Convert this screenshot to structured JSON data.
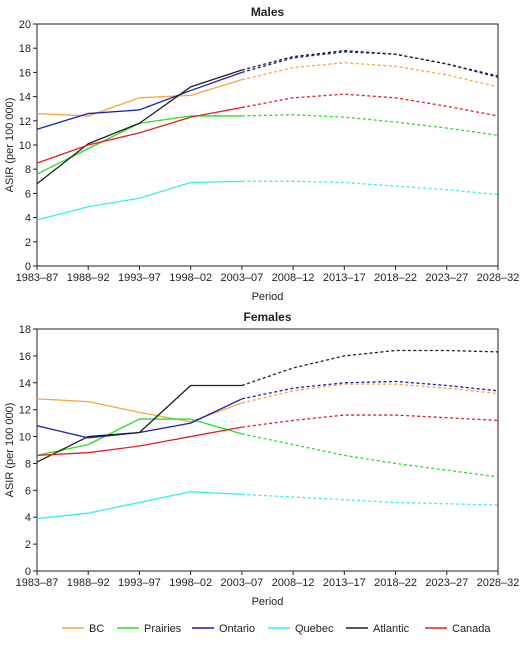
{
  "chart_data": [
    {
      "type": "line",
      "title": "Males",
      "xlabel": "Period",
      "ylabel": "ASIR (per 100 000)",
      "ylim": [
        0,
        20
      ],
      "yticks": [
        0,
        2,
        4,
        6,
        8,
        10,
        12,
        14,
        16,
        18,
        20
      ],
      "grid": false,
      "categories": [
        "1983–87",
        "1988–92",
        "1993–97",
        "1998–02",
        "2003–07",
        "2008–12",
        "2013–17",
        "2018–22",
        "2023–27",
        "2028–32"
      ],
      "observed_through": "2003–07",
      "series": [
        {
          "name": "BC",
          "color": "#f7a541",
          "values": [
            12.6,
            12.4,
            13.9,
            14.1,
            15.4,
            16.4,
            16.8,
            16.5,
            15.8,
            14.8
          ]
        },
        {
          "name": "Prairies",
          "color": "#29e029",
          "values": [
            7.6,
            9.7,
            11.8,
            12.4,
            12.4,
            12.5,
            12.3,
            11.9,
            11.4,
            10.8
          ]
        },
        {
          "name": "Ontario",
          "color": "#1d1db7",
          "values": [
            11.3,
            12.6,
            12.9,
            14.5,
            16.0,
            17.2,
            17.7,
            17.5,
            16.7,
            15.7
          ]
        },
        {
          "name": "Quebec",
          "color": "#3ceeee",
          "values": [
            3.8,
            4.9,
            5.6,
            6.9,
            7.0,
            7.0,
            6.9,
            6.6,
            6.3,
            5.9
          ]
        },
        {
          "name": "Atlantic",
          "color": "#231f20",
          "values": [
            6.8,
            10.1,
            11.8,
            14.8,
            16.2,
            17.3,
            17.8,
            17.5,
            16.7,
            15.6
          ]
        },
        {
          "name": "Canada",
          "color": "#e02228",
          "values": [
            8.5,
            10.0,
            11.0,
            12.3,
            13.1,
            13.9,
            14.2,
            13.9,
            13.2,
            12.4
          ]
        }
      ]
    },
    {
      "type": "line",
      "title": "Females",
      "xlabel": "Period",
      "ylabel": "ASIR (per 100 000)",
      "ylim": [
        0,
        18
      ],
      "yticks": [
        0,
        2,
        4,
        6,
        8,
        10,
        12,
        14,
        16,
        18
      ],
      "grid": false,
      "categories": [
        "1983–87",
        "1988–92",
        "1993–97",
        "1998–02",
        "2003–07",
        "2008–12",
        "2013–17",
        "2018–22",
        "2023–27",
        "2028–32"
      ],
      "observed_through": "2003–07",
      "series": [
        {
          "name": "BC",
          "color": "#f7a541",
          "values": [
            12.8,
            12.6,
            11.8,
            11.1,
            12.5,
            13.4,
            13.9,
            13.9,
            13.6,
            13.2
          ]
        },
        {
          "name": "Prairies",
          "color": "#29e029",
          "values": [
            8.6,
            9.4,
            11.3,
            11.3,
            10.2,
            9.4,
            8.6,
            8.0,
            7.5,
            7.0
          ]
        },
        {
          "name": "Ontario",
          "color": "#1d1db7",
          "values": [
            10.8,
            9.9,
            10.3,
            11.0,
            12.8,
            13.6,
            14.0,
            14.1,
            13.8,
            13.4
          ]
        },
        {
          "name": "Quebec",
          "color": "#3ceeee",
          "values": [
            3.9,
            4.3,
            5.1,
            5.9,
            5.7,
            5.5,
            5.3,
            5.1,
            5.0,
            4.9
          ]
        },
        {
          "name": "Atlantic",
          "color": "#231f20",
          "values": [
            8.1,
            10.0,
            10.3,
            13.8,
            13.8,
            15.1,
            16.0,
            16.4,
            16.4,
            16.3
          ]
        },
        {
          "name": "Canada",
          "color": "#e02228",
          "values": [
            8.6,
            8.8,
            9.3,
            10.0,
            10.7,
            11.2,
            11.6,
            11.6,
            11.4,
            11.2
          ]
        }
      ]
    }
  ],
  "legend": {
    "position": "bottom",
    "items": [
      {
        "label": "BC",
        "color": "#f7a541"
      },
      {
        "label": "Prairies",
        "color": "#29e029"
      },
      {
        "label": "Ontario",
        "color": "#1d1db7"
      },
      {
        "label": "Quebec",
        "color": "#3ceeee"
      },
      {
        "label": "Atlantic",
        "color": "#231f20"
      },
      {
        "label": "Canada",
        "color": "#e02228"
      }
    ]
  }
}
